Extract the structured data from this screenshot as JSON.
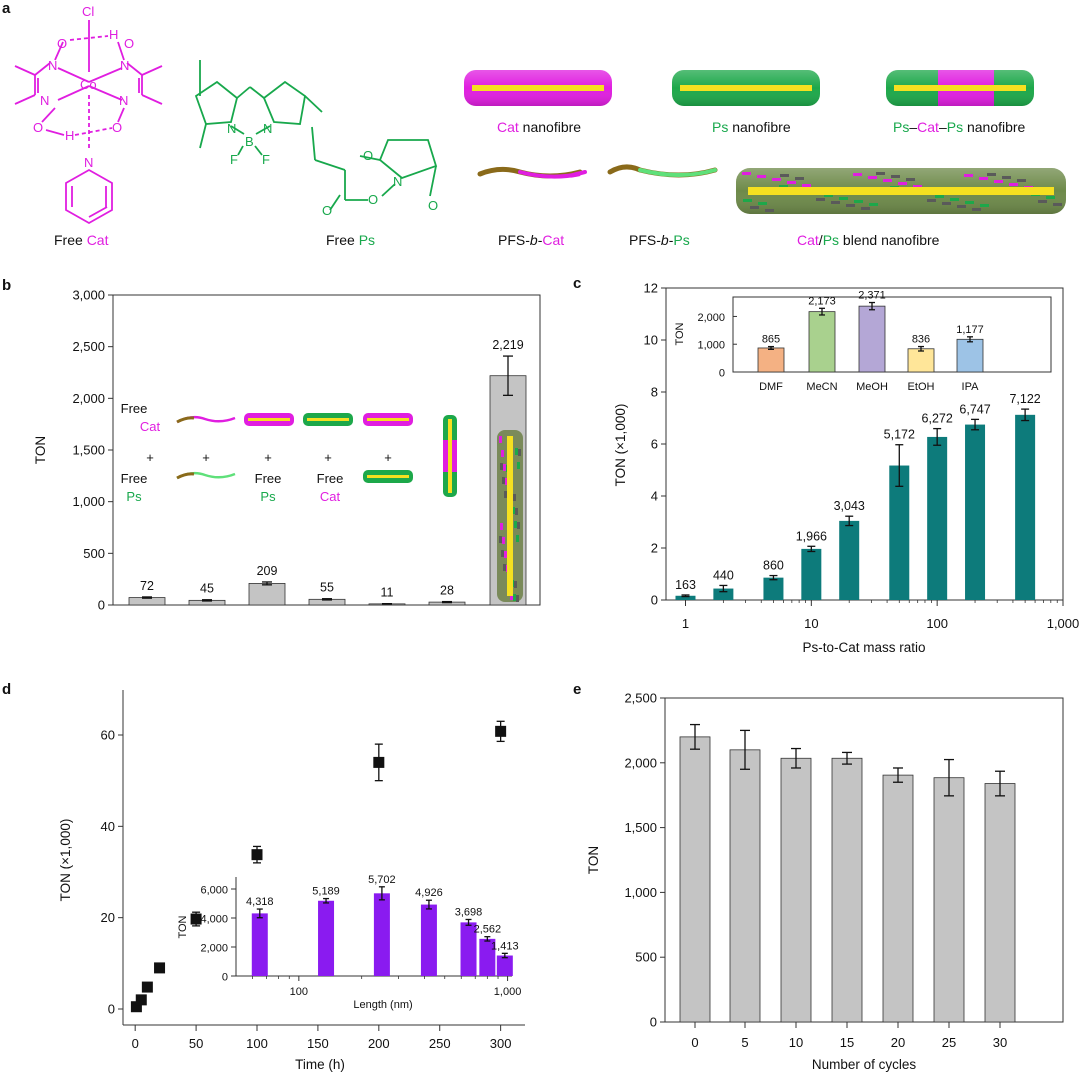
{
  "colors": {
    "magenta": "#e01ee0",
    "green": "#18a84c",
    "gray_bar": "#c4c4c4",
    "teal": "#0d7b7b",
    "purple": "#8a1bf0",
    "solvent_colors": [
      "#f4b183",
      "#a9d18e",
      "#b4a7d6",
      "#ffe699",
      "#9dc3e6"
    ]
  },
  "panel_a": {
    "panel_label": "a",
    "free_cat": {
      "prefix": "Free ",
      "colored": "Cat"
    },
    "free_ps": {
      "prefix": "Free ",
      "colored": "Ps"
    },
    "pfs_cat": {
      "prefix": "PFS-",
      "italic": "b",
      "dash": "-",
      "colored": "Cat"
    },
    "pfs_ps": {
      "prefix": "PFS-",
      "italic": "b",
      "dash": "-",
      "colored": "Ps"
    },
    "cat_nanofibre": {
      "colored": "Cat",
      "suffix": " nanofibre"
    },
    "ps_nanofibre": {
      "colored": "Ps",
      "suffix": " nanofibre"
    },
    "ps_cat_ps_nanofibre": {
      "part1": "Ps",
      "sep1": "–",
      "part2": "Cat",
      "sep2": "–",
      "part3": "Ps",
      "suffix": " nanofibre"
    },
    "blend_nanofibre": {
      "part1": "Cat",
      "sep": "/",
      "part2": "Ps",
      "suffix": " blend nanofibre"
    },
    "atom_labels": [
      "Cl",
      "O",
      "H",
      "O",
      "N",
      "N",
      "Co",
      "N",
      "N",
      "O",
      "H",
      "O",
      "N",
      "N",
      "B",
      "N",
      "F",
      "F",
      "O",
      "O",
      "N",
      "O",
      "O"
    ]
  },
  "panel_b": {
    "panel_label": "b",
    "legend_text": {
      "free": "Free",
      "cat": "Cat",
      "ps": "Ps",
      "plus": "+"
    }
  },
  "panel_c": {
    "panel_label": "c"
  },
  "panel_d": {
    "panel_label": "d"
  },
  "panel_e": {
    "panel_label": "e"
  },
  "chart_data": [
    {
      "id": "b",
      "type": "bar",
      "ylabel": "TON",
      "xlabel": "",
      "ylim": [
        0,
        3000
      ],
      "yticks": [
        "0",
        "500",
        "1,000",
        "1,500",
        "2,000",
        "2,500",
        "3,000"
      ],
      "categories": [
        "Free Cat + Free Ps",
        "PFS-b-Cat + PFS-b-Ps",
        "Cat nanofibre + Free Ps",
        "Ps nanofibre + Free Cat",
        "Cat nanofibre + Ps nanofibre",
        "Ps–Cat–Ps nanofibre",
        "Cat/Ps blend nanofibre"
      ],
      "values": [
        72,
        45,
        209,
        55,
        11,
        28,
        2219
      ],
      "errors": [
        6,
        6,
        14,
        6,
        2,
        5,
        190
      ],
      "labels": [
        "72",
        "45",
        "209",
        "55",
        "11",
        "28",
        "2,219"
      ]
    },
    {
      "id": "c",
      "type": "bar",
      "xlabel": "Ps-to-Cat mass ratio",
      "ylabel": "TON (×1,000)",
      "xscale": "log",
      "xlim": [
        0.7,
        1000
      ],
      "ylim": [
        0,
        12
      ],
      "xticks": [
        "1",
        "10",
        "100",
        "1,000"
      ],
      "yticks": [
        "0",
        "2",
        "4",
        "6",
        "8",
        "10",
        "12"
      ],
      "x": [
        1,
        2,
        5,
        10,
        20,
        50,
        100,
        200,
        500
      ],
      "values": [
        0.163,
        0.44,
        0.86,
        1.966,
        3.043,
        5.172,
        6.272,
        6.747,
        7.122
      ],
      "errors": [
        0.03,
        0.12,
        0.08,
        0.1,
        0.18,
        0.8,
        0.32,
        0.2,
        0.22
      ],
      "labels": [
        "163",
        "440",
        "860",
        "1,966",
        "3,043",
        "5,172",
        "6,272",
        "6,747",
        "7,122"
      ],
      "inset": {
        "type": "bar",
        "ylabel": "TON",
        "ylim": [
          0,
          2700
        ],
        "yticks": [
          "0",
          "1,000",
          "2,000"
        ],
        "categories": [
          "DMF",
          "MeCN",
          "MeOH",
          "EtOH",
          "IPA"
        ],
        "values": [
          865,
          2173,
          2371,
          836,
          1177
        ],
        "errors": [
          50,
          120,
          130,
          80,
          90
        ],
        "labels": [
          "865",
          "2,173",
          "2,371",
          "836",
          "1,177"
        ]
      }
    },
    {
      "id": "d",
      "type": "scatter",
      "xlabel": "Time (h)",
      "ylabel": "TON (×1,000)",
      "xlim": [
        -10,
        320
      ],
      "ylim": [
        -2,
        70
      ],
      "xticks": [
        "0",
        "50",
        "100",
        "150",
        "200",
        "250",
        "300"
      ],
      "yticks": [
        "0",
        "20",
        "40",
        "60"
      ],
      "x": [
        1,
        5,
        10,
        20,
        50,
        100,
        200,
        300
      ],
      "values": [
        0.5,
        2.0,
        4.8,
        9.0,
        19.7,
        33.8,
        54.0,
        60.8
      ],
      "errors": [
        0.3,
        0.4,
        0.5,
        0.6,
        1.5,
        1.8,
        4.0,
        2.2
      ],
      "inset": {
        "type": "bar",
        "xlabel": "Length (nm)",
        "ylabel": "TON",
        "xscale": "log",
        "xlim": [
          50,
          1050
        ],
        "ylim": [
          0,
          6500
        ],
        "xticks": [
          "100",
          "1,000"
        ],
        "yticks": [
          "0",
          "2,000",
          "4,000",
          "6,000"
        ],
        "x": [
          65,
          135,
          250,
          420,
          650,
          800,
          970
        ],
        "values": [
          4318,
          5189,
          5702,
          4926,
          3698,
          2562,
          1413
        ],
        "errors": [
          300,
          150,
          450,
          300,
          200,
          150,
          150
        ],
        "labels": [
          "4,318",
          "5,189",
          "5,702",
          "4,926",
          "3,698",
          "2,562",
          "1,413"
        ]
      }
    },
    {
      "id": "e",
      "type": "bar",
      "xlabel": "Number of cycles",
      "ylabel": "TON",
      "ylim": [
        0,
        2500
      ],
      "yticks": [
        "0",
        "500",
        "1,000",
        "1,500",
        "2,000",
        "2,500"
      ],
      "categories": [
        "0",
        "5",
        "10",
        "15",
        "20",
        "25",
        "30"
      ],
      "values": [
        2200,
        2100,
        2035,
        2035,
        1905,
        1885,
        1840
      ],
      "errors": [
        95,
        150,
        75,
        45,
        55,
        140,
        95
      ]
    }
  ]
}
